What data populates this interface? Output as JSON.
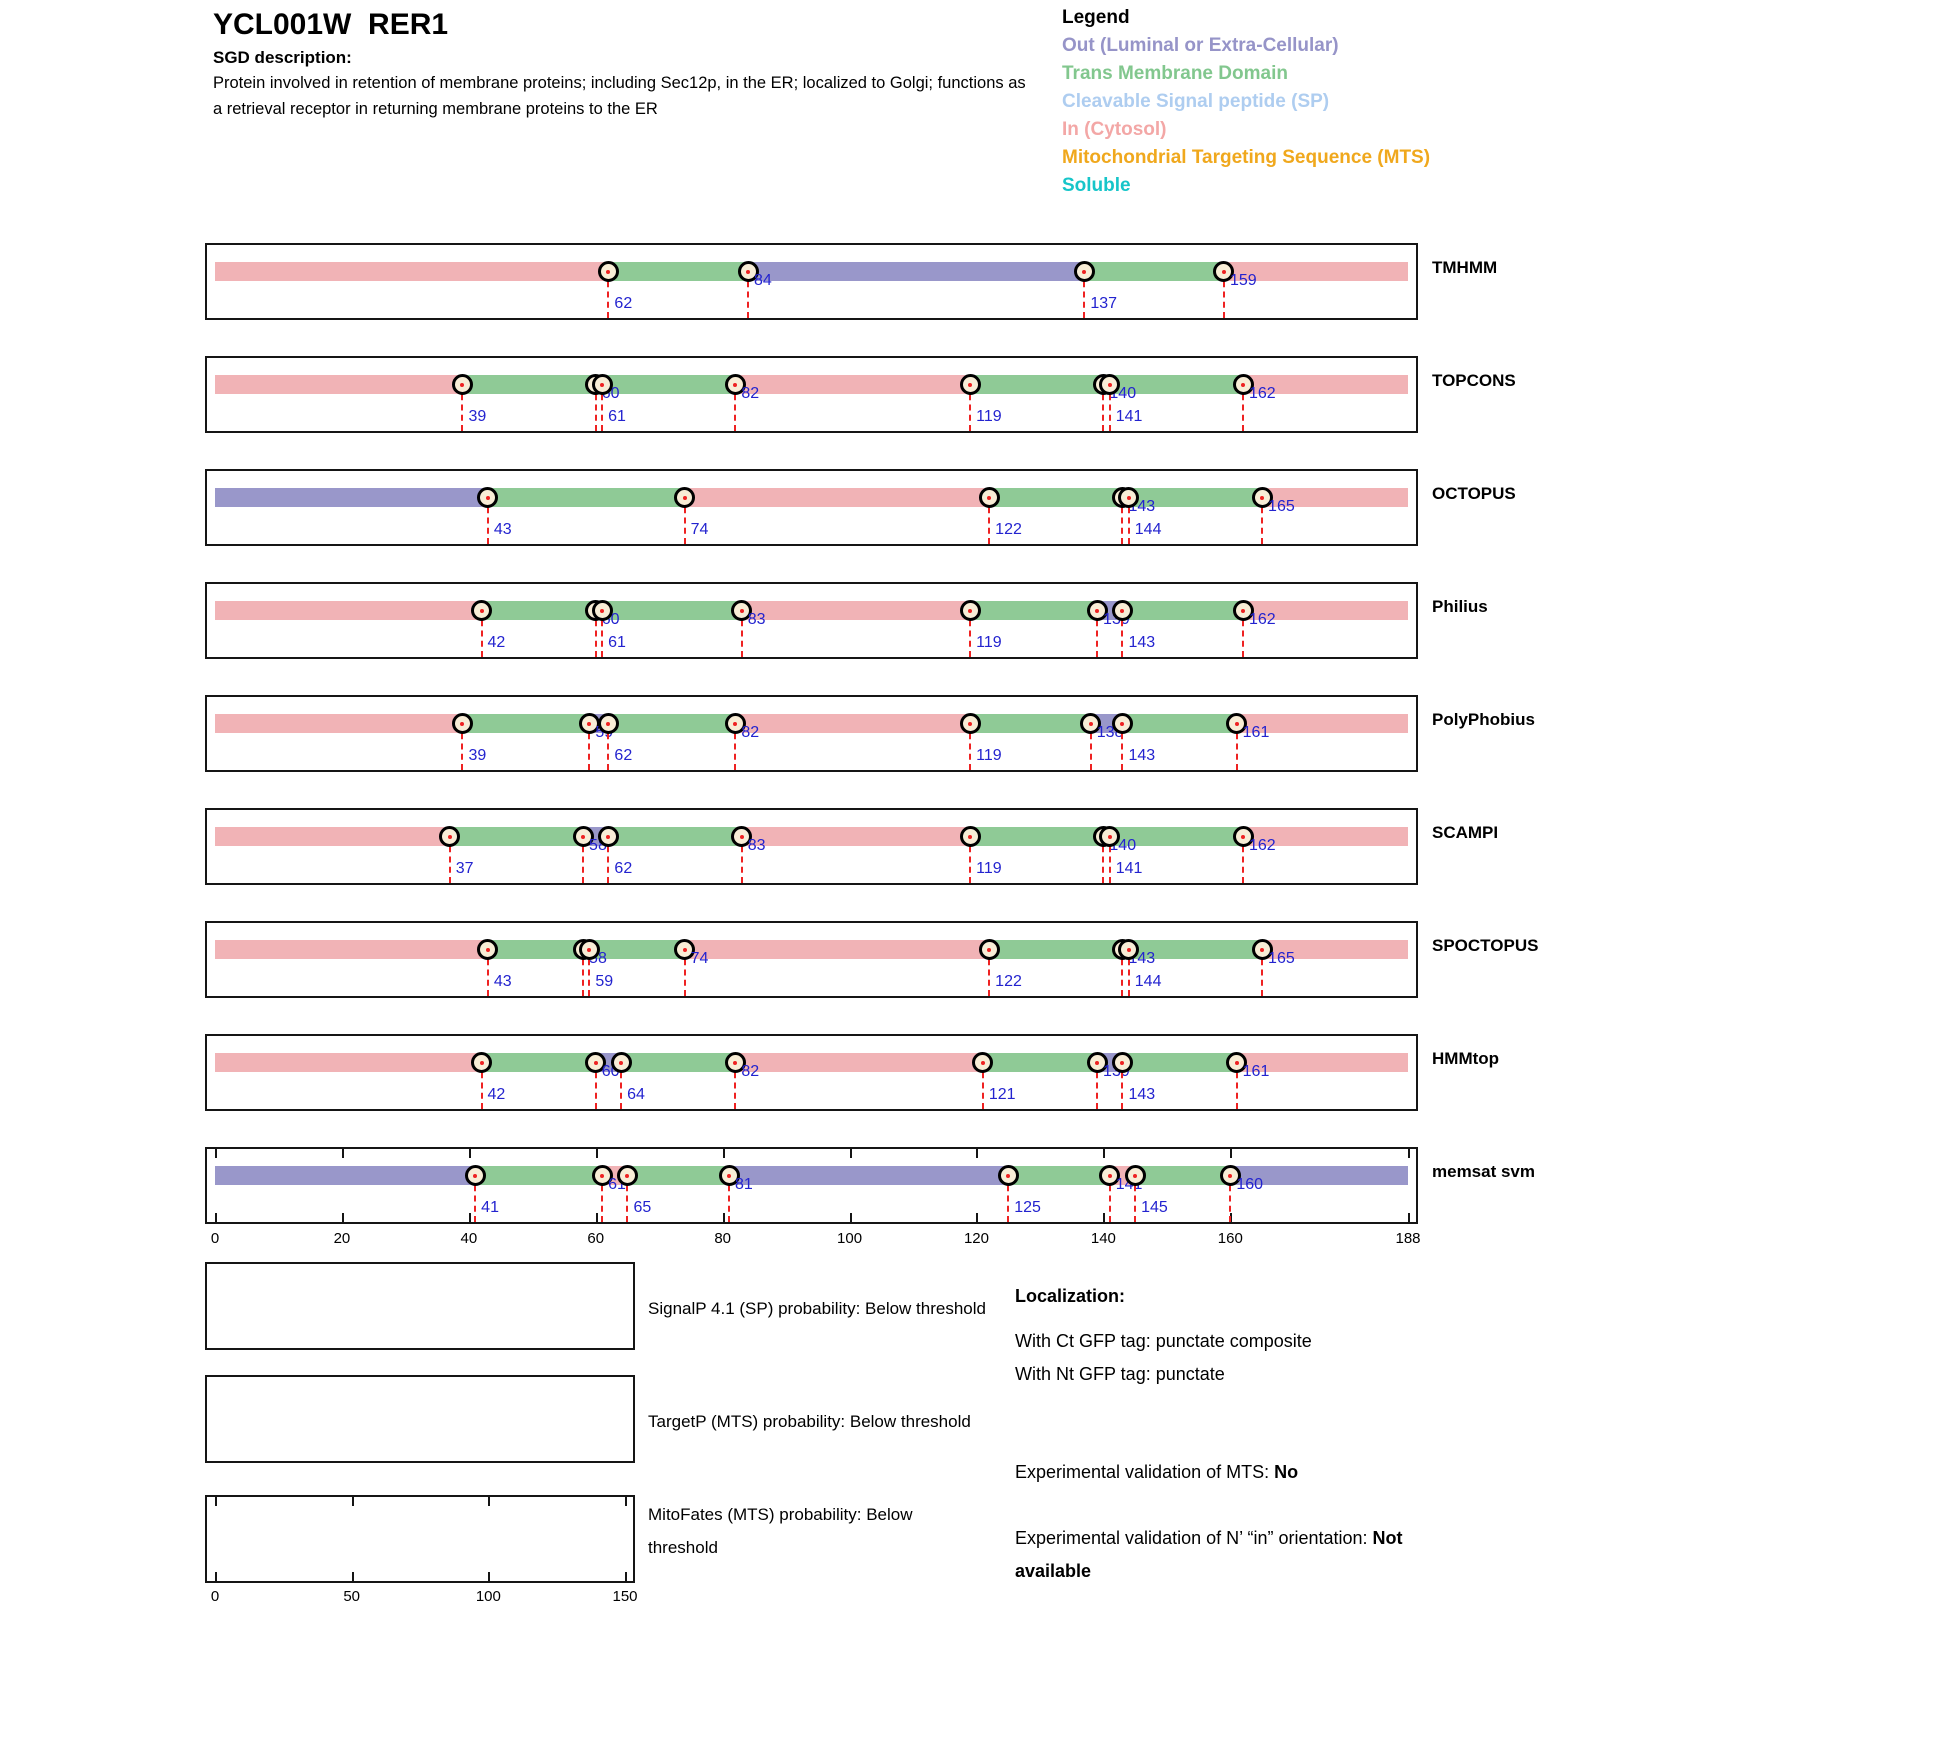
{
  "header": {
    "title": "YCL001W  RER1",
    "sgd_heading": "SGD description:",
    "sgd_text": "Protein involved in retention of membrane proteins; including Sec12p, in the ER; localized to Golgi; functions as a retrieval receptor in returning membrane proteins to the ER"
  },
  "legend": {
    "title": "Legend",
    "items": [
      {
        "label": "Out (Luminal or Extra-Cellular)",
        "color": "#9694C8"
      },
      {
        "label": "Trans Membrane Domain",
        "color": "#82C78E"
      },
      {
        "label": "Cleavable Signal peptide (SP)",
        "color": "#AECDF0"
      },
      {
        "label": "In (Cytosol)",
        "color": "#F3A7A6"
      },
      {
        "label": "Mitochondrial Targeting Sequence (MTS)",
        "color": "#F0A81D"
      },
      {
        "label": "Soluble",
        "color": "#16C5C9"
      }
    ]
  },
  "colors": {
    "in": "#F1B3B6",
    "tm": "#8FCA96",
    "out": "#9997CA",
    "number_blue": "#2323CF",
    "marker_red": "#EE2222",
    "circle_fill": "#F8EDD6"
  },
  "chart_data": [
    {
      "type": "bar",
      "subtype": "membrane-topology-tracks",
      "title": "",
      "xlabel": "",
      "ylabel": "",
      "xlim": [
        0,
        188
      ],
      "x_ticks": [
        0,
        20,
        40,
        60,
        80,
        100,
        120,
        140,
        160,
        188
      ],
      "legend_position": "top-right",
      "grid": false,
      "categories_legend": {
        "in": "In (Cytosol)",
        "tm": "Trans Membrane Domain",
        "out": "Out (Luminal or Extra-Cellular)"
      },
      "tracks": [
        {
          "name": "TMHMM",
          "segments": [
            [
              "in",
              0,
              62
            ],
            [
              "tm",
              62,
              84
            ],
            [
              "out",
              84,
              137
            ],
            [
              "tm",
              137,
              159
            ],
            [
              "in",
              159,
              188
            ]
          ],
          "markers": [
            [
              62,
              "low"
            ],
            [
              84,
              "high"
            ],
            [
              137,
              "low"
            ],
            [
              159,
              "high"
            ]
          ]
        },
        {
          "name": "TOPCONS",
          "segments": [
            [
              "in",
              0,
              39
            ],
            [
              "tm",
              39,
              60
            ],
            [
              "out",
              60,
              61
            ],
            [
              "tm",
              61,
              82
            ],
            [
              "in",
              82,
              119
            ],
            [
              "tm",
              119,
              140
            ],
            [
              "out",
              140,
              141
            ],
            [
              "tm",
              141,
              162
            ],
            [
              "in",
              162,
              188
            ]
          ],
          "markers": [
            [
              39,
              "low"
            ],
            [
              60,
              "high"
            ],
            [
              61,
              "low"
            ],
            [
              82,
              "high"
            ],
            [
              119,
              "low"
            ],
            [
              140,
              "high"
            ],
            [
              141,
              "low"
            ],
            [
              162,
              "high"
            ]
          ]
        },
        {
          "name": "OCTOPUS",
          "segments": [
            [
              "out",
              0,
              43
            ],
            [
              "tm",
              43,
              74
            ],
            [
              "in",
              74,
              122
            ],
            [
              "tm",
              122,
              143
            ],
            [
              "out",
              143,
              144
            ],
            [
              "tm",
              144,
              165
            ],
            [
              "in",
              165,
              188
            ]
          ],
          "markers": [
            [
              43,
              "low"
            ],
            [
              74,
              "low"
            ],
            [
              122,
              "low"
            ],
            [
              143,
              "high"
            ],
            [
              144,
              "low"
            ],
            [
              165,
              "high"
            ]
          ]
        },
        {
          "name": "Philius",
          "segments": [
            [
              "in",
              0,
              42
            ],
            [
              "tm",
              42,
              60
            ],
            [
              "out",
              60,
              61
            ],
            [
              "tm",
              61,
              83
            ],
            [
              "in",
              83,
              119
            ],
            [
              "tm",
              119,
              139
            ],
            [
              "out",
              139,
              143
            ],
            [
              "tm",
              143,
              162
            ],
            [
              "in",
              162,
              188
            ]
          ],
          "markers": [
            [
              42,
              "low"
            ],
            [
              60,
              "high"
            ],
            [
              61,
              "low"
            ],
            [
              83,
              "high"
            ],
            [
              119,
              "low"
            ],
            [
              139,
              "high"
            ],
            [
              143,
              "low"
            ],
            [
              162,
              "high"
            ]
          ]
        },
        {
          "name": "PolyPhobius",
          "segments": [
            [
              "in",
              0,
              39
            ],
            [
              "tm",
              39,
              59
            ],
            [
              "out",
              59,
              62
            ],
            [
              "tm",
              62,
              82
            ],
            [
              "in",
              82,
              119
            ],
            [
              "tm",
              119,
              138
            ],
            [
              "out",
              138,
              143
            ],
            [
              "tm",
              143,
              161
            ],
            [
              "in",
              161,
              188
            ]
          ],
          "markers": [
            [
              39,
              "low"
            ],
            [
              59,
              "high"
            ],
            [
              62,
              "low"
            ],
            [
              82,
              "high"
            ],
            [
              119,
              "low"
            ],
            [
              138,
              "high"
            ],
            [
              143,
              "low"
            ],
            [
              161,
              "high"
            ]
          ]
        },
        {
          "name": "SCAMPI",
          "segments": [
            [
              "in",
              0,
              37
            ],
            [
              "tm",
              37,
              58
            ],
            [
              "out",
              58,
              62
            ],
            [
              "tm",
              62,
              83
            ],
            [
              "in",
              83,
              119
            ],
            [
              "tm",
              119,
              140
            ],
            [
              "out",
              140,
              141
            ],
            [
              "tm",
              141,
              162
            ],
            [
              "in",
              162,
              188
            ]
          ],
          "markers": [
            [
              37,
              "low"
            ],
            [
              58,
              "high"
            ],
            [
              62,
              "low"
            ],
            [
              83,
              "high"
            ],
            [
              119,
              "low"
            ],
            [
              140,
              "high"
            ],
            [
              141,
              "low"
            ],
            [
              162,
              "high"
            ]
          ]
        },
        {
          "name": "SPOCTOPUS",
          "segments": [
            [
              "in",
              0,
              43
            ],
            [
              "tm",
              43,
              58
            ],
            [
              "out",
              58,
              59
            ],
            [
              "tm",
              59,
              74
            ],
            [
              "in",
              74,
              122
            ],
            [
              "tm",
              122,
              143
            ],
            [
              "out",
              143,
              144
            ],
            [
              "tm",
              144,
              165
            ],
            [
              "in",
              165,
              188
            ]
          ],
          "markers": [
            [
              43,
              "low"
            ],
            [
              58,
              "high"
            ],
            [
              59,
              "low"
            ],
            [
              74,
              "high"
            ],
            [
              122,
              "low"
            ],
            [
              143,
              "high"
            ],
            [
              144,
              "low"
            ],
            [
              165,
              "high"
            ]
          ]
        },
        {
          "name": "HMMtop",
          "segments": [
            [
              "in",
              0,
              42
            ],
            [
              "tm",
              42,
              60
            ],
            [
              "out",
              60,
              64
            ],
            [
              "tm",
              64,
              82
            ],
            [
              "in",
              82,
              121
            ],
            [
              "tm",
              121,
              139
            ],
            [
              "out",
              139,
              143
            ],
            [
              "tm",
              143,
              161
            ],
            [
              "in",
              161,
              188
            ]
          ],
          "markers": [
            [
              42,
              "low"
            ],
            [
              60,
              "high"
            ],
            [
              64,
              "low"
            ],
            [
              82,
              "high"
            ],
            [
              121,
              "low"
            ],
            [
              139,
              "high"
            ],
            [
              143,
              "low"
            ],
            [
              161,
              "high"
            ]
          ]
        },
        {
          "name": "memsat svm",
          "axis": true,
          "segments": [
            [
              "out",
              0,
              41
            ],
            [
              "tm",
              41,
              61
            ],
            [
              "in",
              61,
              65
            ],
            [
              "tm",
              65,
              81
            ],
            [
              "out",
              81,
              125
            ],
            [
              "tm",
              125,
              141
            ],
            [
              "in",
              141,
              145
            ],
            [
              "tm",
              145,
              160
            ],
            [
              "out",
              160,
              188
            ]
          ],
          "markers": [
            [
              41,
              "low"
            ],
            [
              61,
              "high"
            ],
            [
              65,
              "low"
            ],
            [
              81,
              "high"
            ],
            [
              125,
              "low"
            ],
            [
              141,
              "high"
            ],
            [
              145,
              "low"
            ],
            [
              160,
              "high"
            ]
          ]
        }
      ]
    },
    {
      "type": "line",
      "label": "SignalP 4.1 (SP) probability: Below threshold",
      "values": [],
      "x_ticks": []
    },
    {
      "type": "line",
      "label": "TargetP (MTS) probability: Below threshold",
      "values": [],
      "x_ticks": []
    },
    {
      "type": "line",
      "label": "MitoFates (MTS) probability: Below threshold",
      "values": [],
      "x_ticks": [
        0,
        50,
        100,
        150
      ],
      "xlim": [
        0,
        150
      ]
    }
  ],
  "localization": {
    "heading": "Localization:",
    "ct_line": "With Ct GFP tag: punctate composite",
    "nt_line": "With Nt GFP tag: punctate",
    "exp_mts_label": "Experimental validation of MTS: ",
    "exp_mts_value": "No",
    "exp_nin_label": "Experimental validation of N’ “in” orientation: ",
    "exp_nin_value": "Not available"
  }
}
